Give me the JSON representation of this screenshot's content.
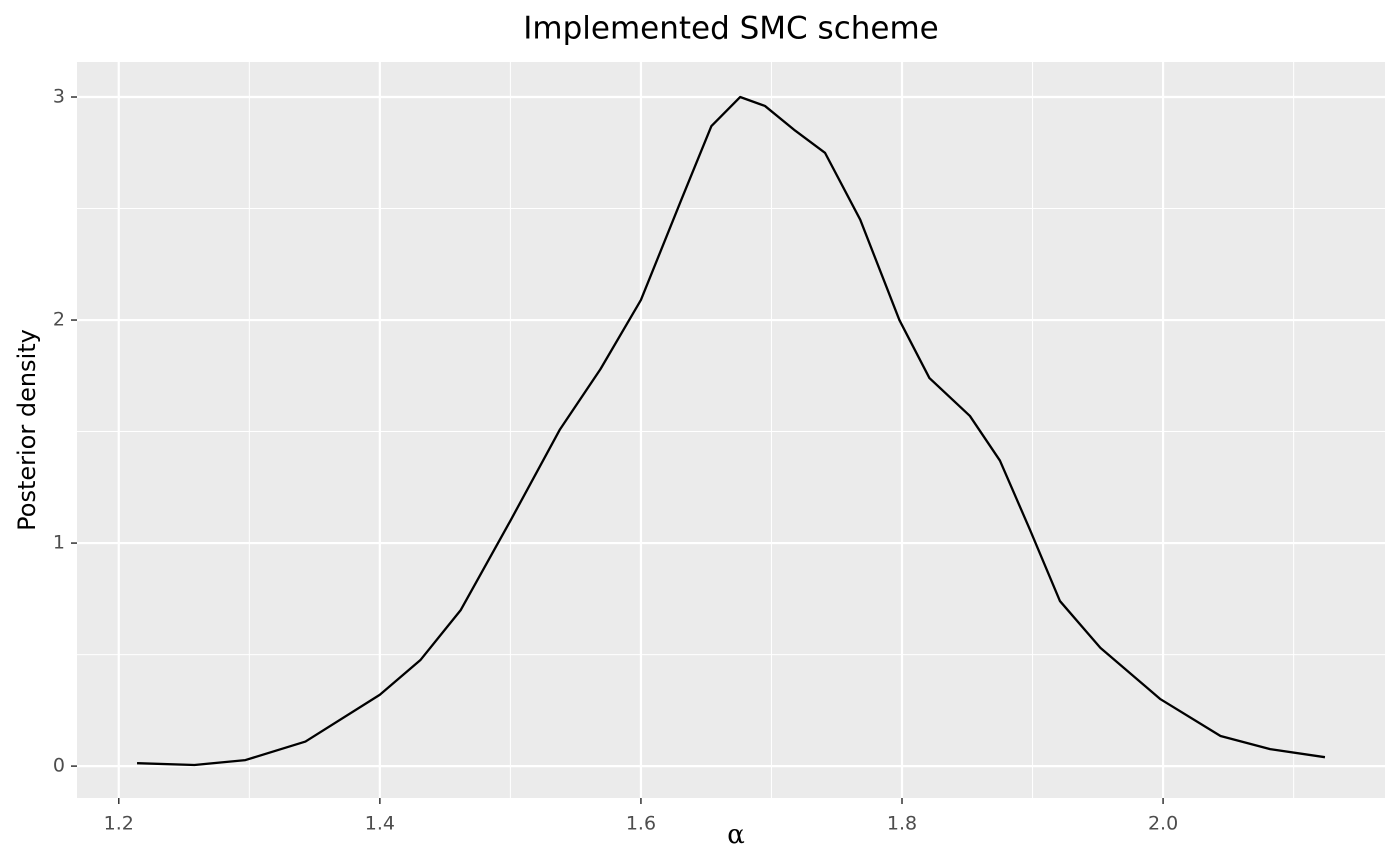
{
  "chart_data": {
    "type": "line",
    "title": "Implemented SMC scheme",
    "x_label": "α",
    "y_label": "Posterior density",
    "x": [
      1.214,
      1.258,
      1.297,
      1.343,
      1.4,
      1.431,
      1.462,
      1.5,
      1.538,
      1.569,
      1.6,
      1.631,
      1.654,
      1.676,
      1.695,
      1.718,
      1.741,
      1.768,
      1.798,
      1.821,
      1.852,
      1.875,
      1.898,
      1.921,
      1.952,
      1.998,
      2.044,
      2.082,
      2.124
    ],
    "series": [
      {
        "color": "#000000",
        "values": [
          0.013,
          0.005,
          0.027,
          0.11,
          0.32,
          0.475,
          0.7,
          1.1,
          1.51,
          1.78,
          2.09,
          2.54,
          2.87,
          3.0,
          2.96,
          2.85,
          2.75,
          2.45,
          2.0,
          1.74,
          1.57,
          1.37,
          1.06,
          0.74,
          0.53,
          0.3,
          0.135,
          0.076,
          0.04
        ]
      }
    ],
    "xlim": [
      1.168,
      2.17
    ],
    "ylim": [
      -0.143,
      3.157
    ],
    "xticks": [
      1.2,
      1.4,
      1.6,
      1.8,
      {
        "value": 2,
        "label": "2.0"
      }
    ],
    "yticks": [
      0,
      1,
      2,
      3
    ],
    "grid": true
  }
}
